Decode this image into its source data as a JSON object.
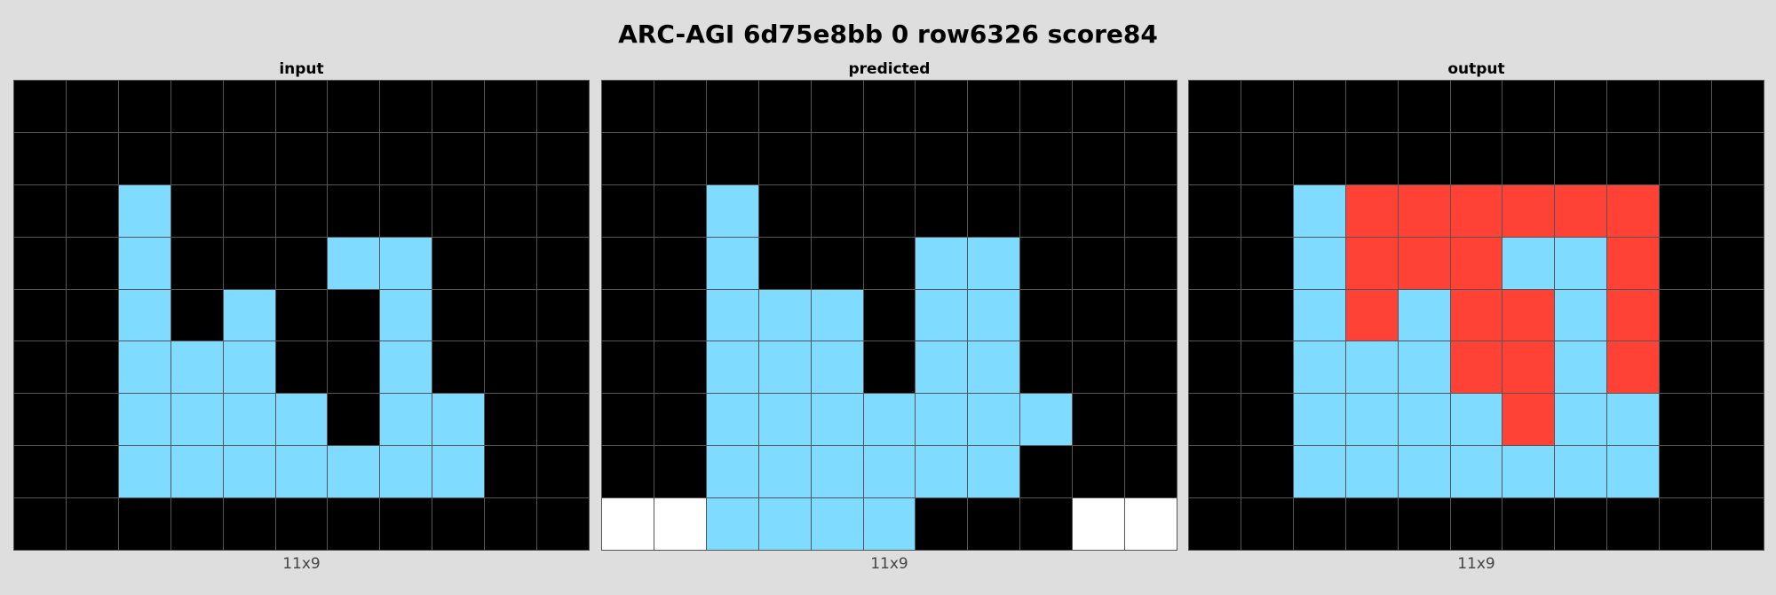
{
  "title": "ARC-AGI 6d75e8bb 0 row6326 score84",
  "palette": {
    "0": "#000000",
    "2": "#ff4136",
    "8": "#7fdbff",
    "w": "#ffffff"
  },
  "panels": [
    {
      "label": "input",
      "dims": "11x9",
      "grid": [
        [
          0,
          0,
          0,
          0,
          0,
          0,
          0,
          0,
          0,
          0,
          0
        ],
        [
          0,
          0,
          0,
          0,
          0,
          0,
          0,
          0,
          0,
          0,
          0
        ],
        [
          0,
          0,
          8,
          0,
          0,
          0,
          0,
          0,
          0,
          0,
          0
        ],
        [
          0,
          0,
          8,
          0,
          0,
          0,
          8,
          8,
          0,
          0,
          0
        ],
        [
          0,
          0,
          8,
          0,
          8,
          0,
          0,
          8,
          0,
          0,
          0
        ],
        [
          0,
          0,
          8,
          8,
          8,
          0,
          0,
          8,
          0,
          0,
          0
        ],
        [
          0,
          0,
          8,
          8,
          8,
          8,
          0,
          8,
          8,
          0,
          0
        ],
        [
          0,
          0,
          8,
          8,
          8,
          8,
          8,
          8,
          8,
          0,
          0
        ],
        [
          0,
          0,
          0,
          0,
          0,
          0,
          0,
          0,
          0,
          0,
          0
        ]
      ]
    },
    {
      "label": "predicted",
      "dims": "11x9",
      "grid": [
        [
          0,
          0,
          0,
          0,
          0,
          0,
          0,
          0,
          0,
          0,
          0
        ],
        [
          0,
          0,
          0,
          0,
          0,
          0,
          0,
          0,
          0,
          0,
          0
        ],
        [
          0,
          0,
          8,
          0,
          0,
          0,
          0,
          0,
          0,
          0,
          0
        ],
        [
          0,
          0,
          8,
          0,
          0,
          0,
          8,
          8,
          0,
          0,
          0
        ],
        [
          0,
          0,
          8,
          8,
          8,
          0,
          8,
          8,
          0,
          0,
          0
        ],
        [
          0,
          0,
          8,
          8,
          8,
          0,
          8,
          8,
          0,
          0,
          0
        ],
        [
          0,
          0,
          8,
          8,
          8,
          8,
          8,
          8,
          8,
          0,
          0
        ],
        [
          0,
          0,
          8,
          8,
          8,
          8,
          8,
          8,
          0,
          0,
          0
        ],
        [
          "w",
          "w",
          8,
          8,
          8,
          8,
          0,
          0,
          0,
          "w",
          "w"
        ]
      ]
    },
    {
      "label": "output",
      "dims": "11x9",
      "grid": [
        [
          0,
          0,
          0,
          0,
          0,
          0,
          0,
          0,
          0,
          0,
          0
        ],
        [
          0,
          0,
          0,
          0,
          0,
          0,
          0,
          0,
          0,
          0,
          0
        ],
        [
          0,
          0,
          8,
          2,
          2,
          2,
          2,
          2,
          2,
          0,
          0
        ],
        [
          0,
          0,
          8,
          2,
          2,
          2,
          8,
          8,
          2,
          0,
          0
        ],
        [
          0,
          0,
          8,
          2,
          8,
          2,
          2,
          8,
          2,
          0,
          0
        ],
        [
          0,
          0,
          8,
          8,
          8,
          2,
          2,
          8,
          2,
          0,
          0
        ],
        [
          0,
          0,
          8,
          8,
          8,
          8,
          2,
          8,
          8,
          0,
          0
        ],
        [
          0,
          0,
          8,
          8,
          8,
          8,
          8,
          8,
          8,
          0,
          0
        ],
        [
          0,
          0,
          0,
          0,
          0,
          0,
          0,
          0,
          0,
          0,
          0
        ]
      ]
    }
  ]
}
